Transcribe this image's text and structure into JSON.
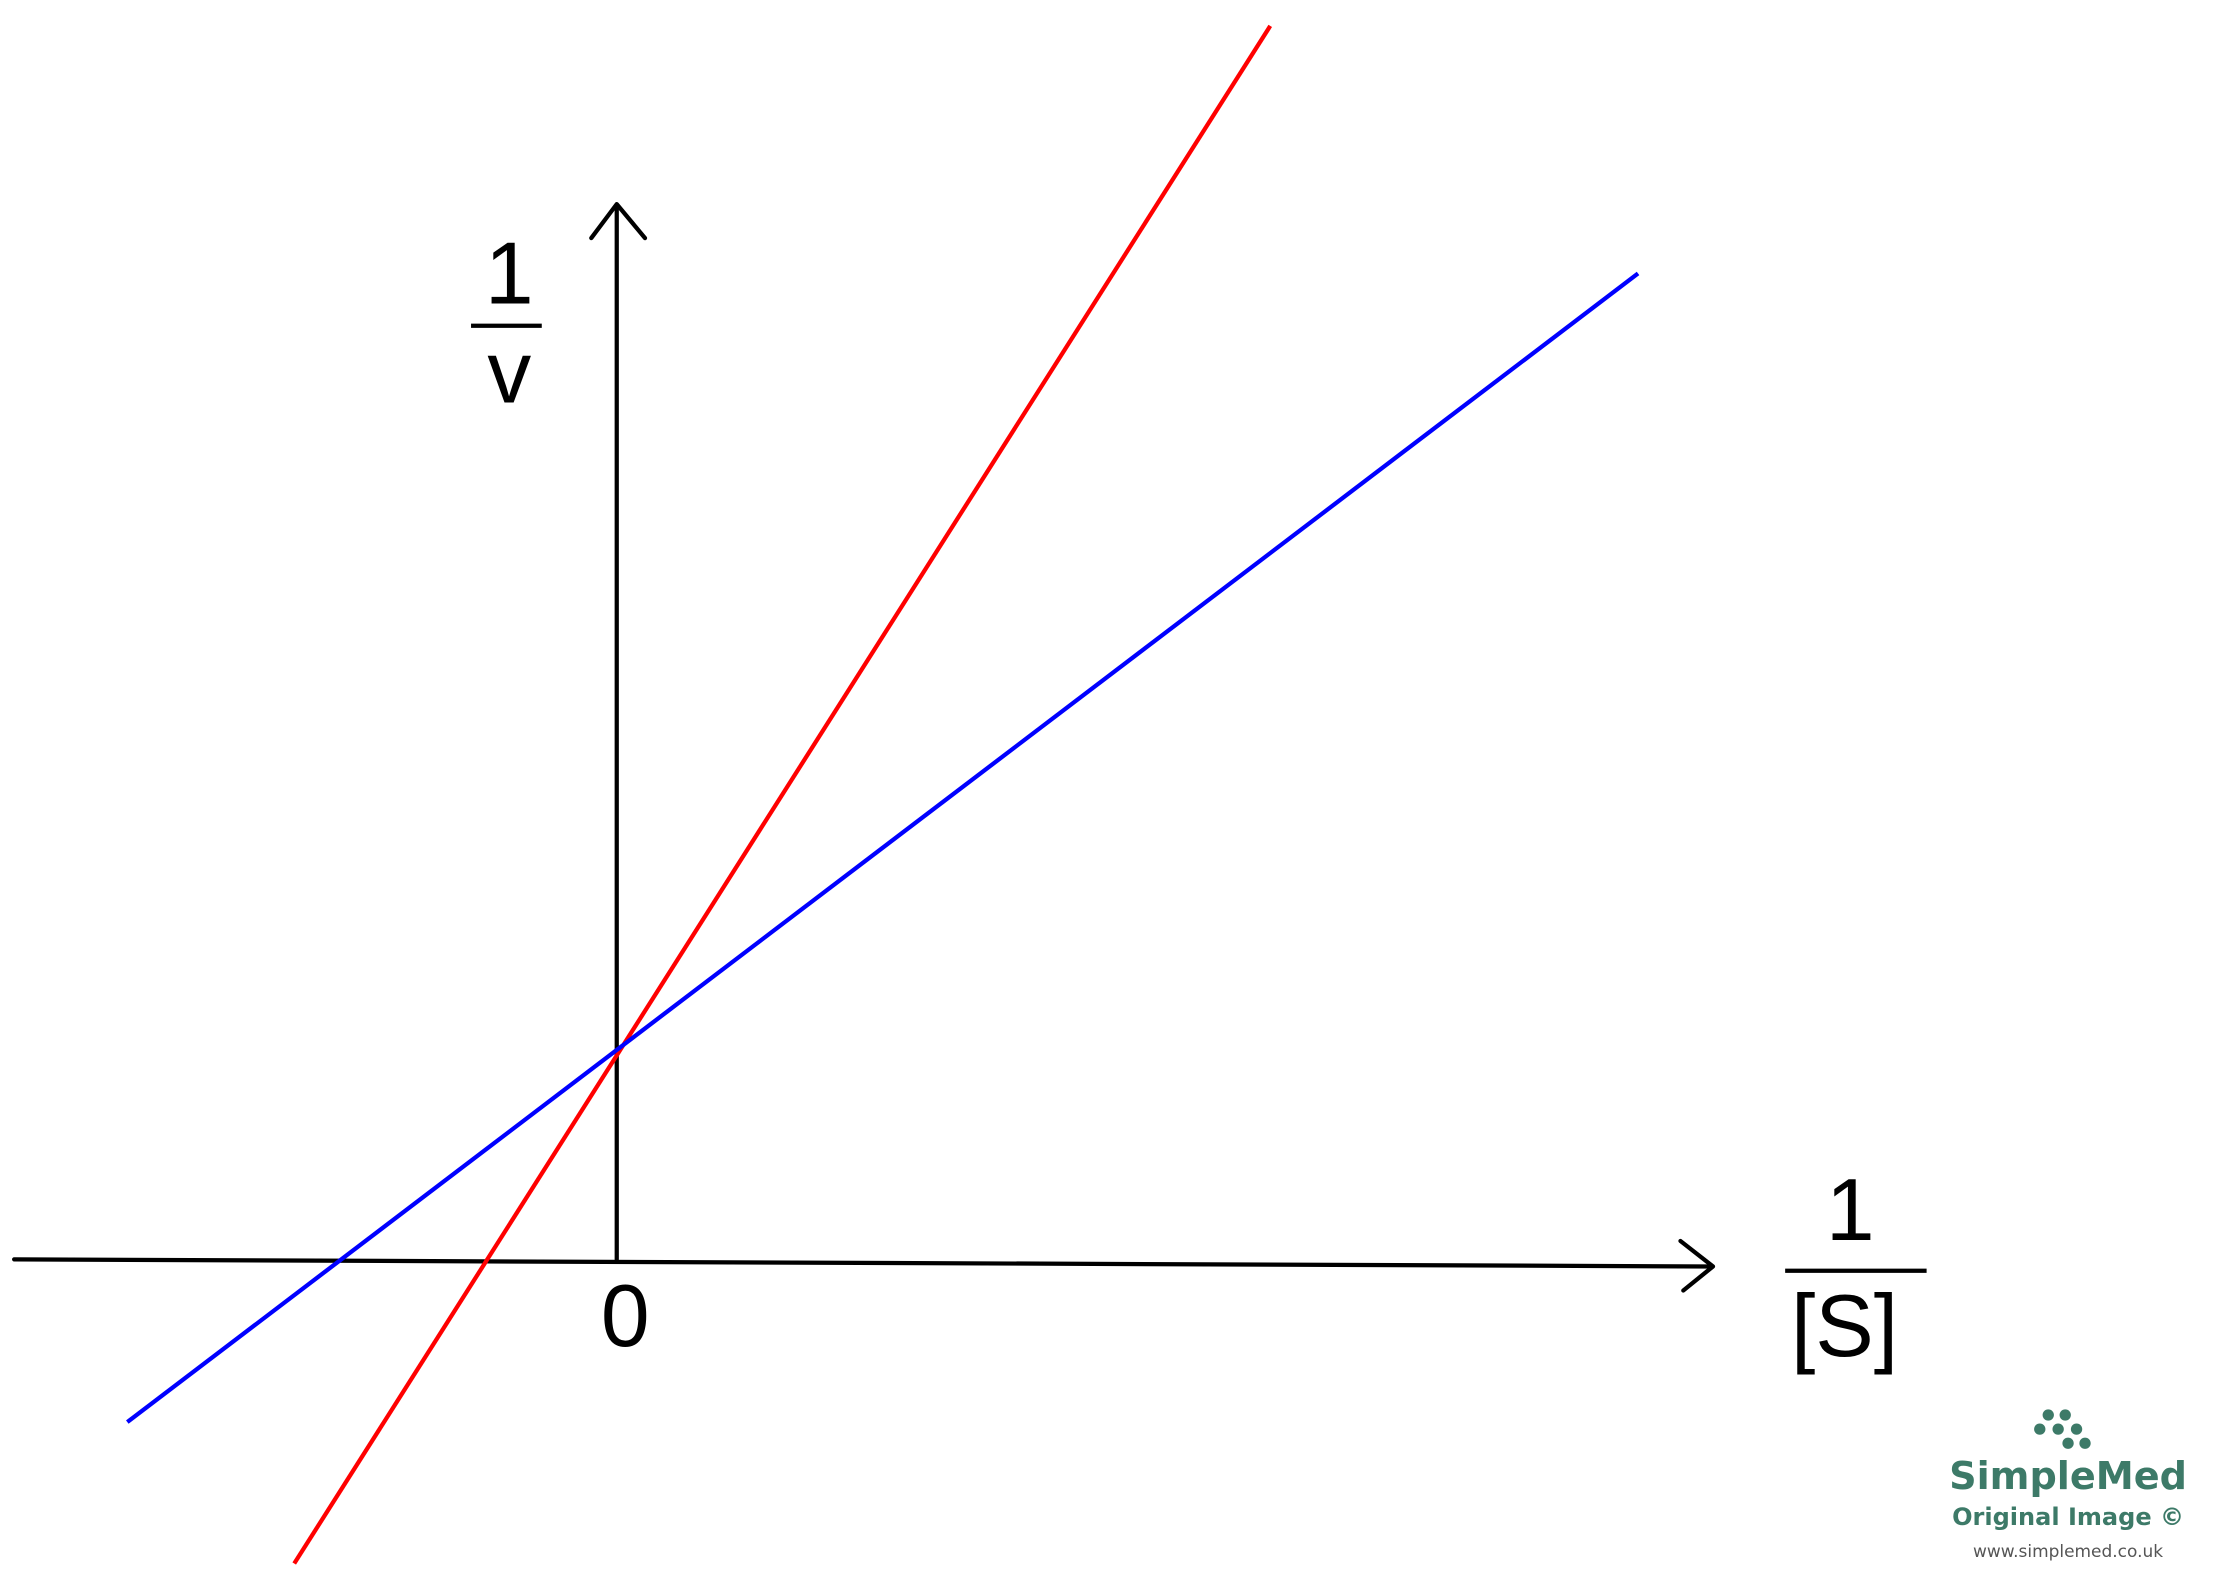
{
  "axes": {
    "y_label": {
      "numerator": "1",
      "denominator": "v"
    },
    "x_label": {
      "numerator": "1",
      "denominator": "[S]"
    },
    "origin": "0"
  },
  "logo": {
    "name": "SimpleMed",
    "caption": "Original Image ©",
    "url": "www.simplemed.co.uk"
  }
}
